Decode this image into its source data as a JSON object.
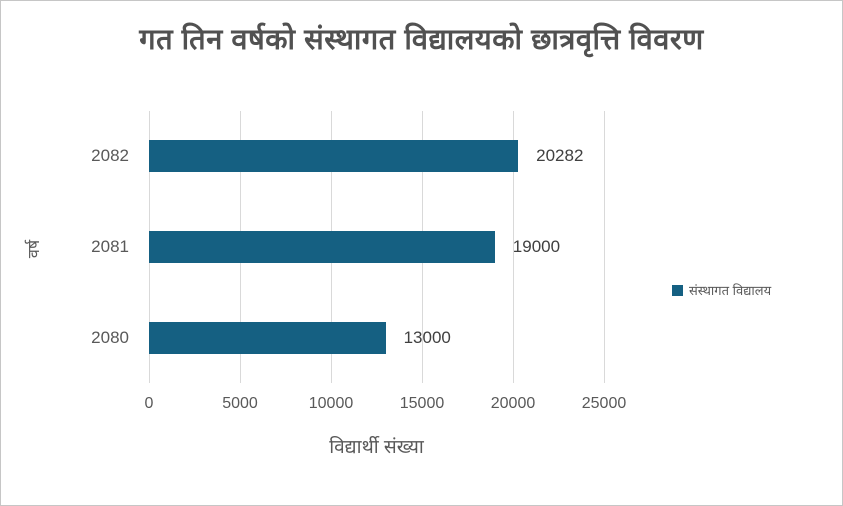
{
  "title": "गत तिन वर्षको संस्थागत विद्यालयको छात्रवृत्ति विवरण",
  "legend": {
    "position": "right",
    "items": [
      {
        "label": "संस्थागत विद्यालय",
        "color": "#156082"
      }
    ]
  },
  "colors": {
    "bar": "#156082",
    "grid": "#d9d9d9",
    "tick_text": "#595959",
    "value_text": "#404040",
    "title_text": "#515151",
    "frame_border": "#c6c6c6",
    "background": "#ffffff"
  },
  "chart_data": {
    "type": "bar",
    "orientation": "horizontal",
    "title": "गत तिन वर्षको संस्थागत विद्यालयको छात्रवृत्ति विवरण",
    "categories": [
      "2082",
      "2081",
      "2080"
    ],
    "series": [
      {
        "name": "संस्थागत विद्यालय",
        "color": "#156082",
        "values": [
          20282,
          19000,
          13000
        ]
      }
    ],
    "data_labels": [
      "20282",
      "19000",
      "13000"
    ],
    "xlabel": "विद्यार्थी संख्या",
    "ylabel": "वर्ष",
    "xlim": [
      0,
      25000
    ],
    "xticks": [
      0,
      5000,
      10000,
      15000,
      20000,
      25000
    ],
    "grid": "vertical",
    "legend_position": "right"
  }
}
